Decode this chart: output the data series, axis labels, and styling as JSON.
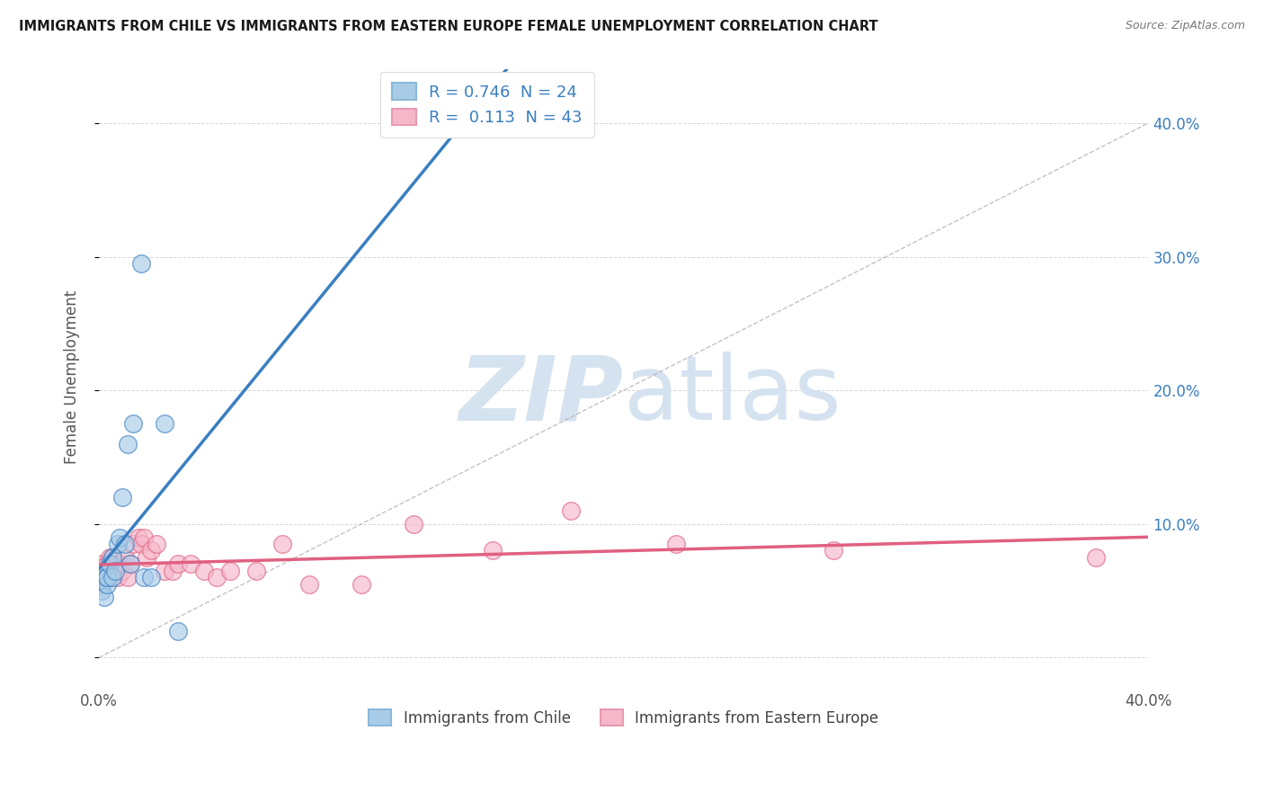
{
  "title": "IMMIGRANTS FROM CHILE VS IMMIGRANTS FROM EASTERN EUROPE FEMALE UNEMPLOYMENT CORRELATION CHART",
  "source": "Source: ZipAtlas.com",
  "ylabel": "Female Unemployment",
  "xlim": [
    0.0,
    0.4
  ],
  "ylim": [
    -0.02,
    0.44
  ],
  "xticks": [
    0.0,
    0.1,
    0.2,
    0.3,
    0.4
  ],
  "yticks": [
    0.0,
    0.1,
    0.2,
    0.3,
    0.4
  ],
  "xticklabels": [
    "0.0%",
    "",
    "",
    "",
    "40.0%"
  ],
  "yticklabels_right": [
    "",
    "10.0%",
    "20.0%",
    "30.0%",
    "40.0%"
  ],
  "legend_labels": [
    "Immigrants from Chile",
    "Immigrants from Eastern Europe"
  ],
  "R_chile": 0.746,
  "N_chile": 24,
  "R_eastern": 0.113,
  "N_eastern": 43,
  "chile_color": "#a8cce8",
  "eastern_color": "#f5b8cb",
  "chile_line_color": "#3a7fc1",
  "eastern_line_color": "#e06080",
  "diagonal_color": "#aaaaaa",
  "background_color": "#ffffff",
  "watermark_text": "ZIPatlas",
  "watermark_color": "#d5e3f0",
  "grid_color": "#cccccc",
  "chile_x": [
    0.001,
    0.001,
    0.002,
    0.002,
    0.002,
    0.003,
    0.003,
    0.003,
    0.004,
    0.005,
    0.005,
    0.006,
    0.007,
    0.008,
    0.009,
    0.01,
    0.011,
    0.012,
    0.013,
    0.016,
    0.017,
    0.02,
    0.025,
    0.03
  ],
  "chile_y": [
    0.055,
    0.05,
    0.06,
    0.065,
    0.045,
    0.06,
    0.055,
    0.06,
    0.07,
    0.075,
    0.06,
    0.065,
    0.085,
    0.09,
    0.12,
    0.085,
    0.16,
    0.07,
    0.175,
    0.295,
    0.06,
    0.06,
    0.175,
    0.02
  ],
  "eastern_x": [
    0.001,
    0.001,
    0.001,
    0.002,
    0.002,
    0.003,
    0.003,
    0.004,
    0.004,
    0.005,
    0.005,
    0.006,
    0.007,
    0.007,
    0.008,
    0.009,
    0.01,
    0.011,
    0.012,
    0.013,
    0.015,
    0.016,
    0.017,
    0.018,
    0.02,
    0.022,
    0.025,
    0.028,
    0.03,
    0.035,
    0.04,
    0.045,
    0.05,
    0.06,
    0.07,
    0.08,
    0.1,
    0.12,
    0.15,
    0.18,
    0.22,
    0.28,
    0.38
  ],
  "eastern_y": [
    0.06,
    0.065,
    0.07,
    0.06,
    0.065,
    0.06,
    0.07,
    0.06,
    0.075,
    0.065,
    0.075,
    0.065,
    0.06,
    0.07,
    0.07,
    0.065,
    0.075,
    0.06,
    0.07,
    0.085,
    0.09,
    0.085,
    0.09,
    0.075,
    0.08,
    0.085,
    0.065,
    0.065,
    0.07,
    0.07,
    0.065,
    0.06,
    0.065,
    0.065,
    0.085,
    0.055,
    0.055,
    0.1,
    0.08,
    0.11,
    0.085,
    0.08,
    0.075
  ]
}
